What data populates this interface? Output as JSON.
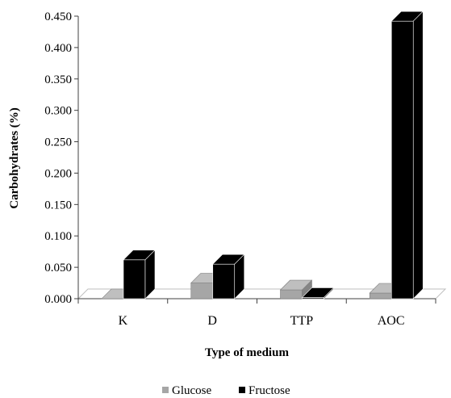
{
  "chart_data": {
    "type": "bar",
    "style": "3d-clustered-column",
    "categories": [
      "K",
      "D",
      "TTP",
      "AOC"
    ],
    "series": [
      {
        "name": "Glucose",
        "values": [
          0.0,
          0.025,
          0.014,
          0.009
        ],
        "color": "#a6a6a6"
      },
      {
        "name": "Fructose",
        "values": [
          0.062,
          0.055,
          0.002,
          0.442
        ],
        "color": "#000000"
      }
    ],
    "xlabel": "Type of medium",
    "ylabel": "Carbohydrates (%)",
    "ylim": [
      0,
      0.45
    ],
    "yticks": [
      "0.000",
      "0.050",
      "0.100",
      "0.150",
      "0.200",
      "0.250",
      "0.300",
      "0.350",
      "0.400",
      "0.450"
    ],
    "grid": false,
    "legend": "bottom"
  }
}
